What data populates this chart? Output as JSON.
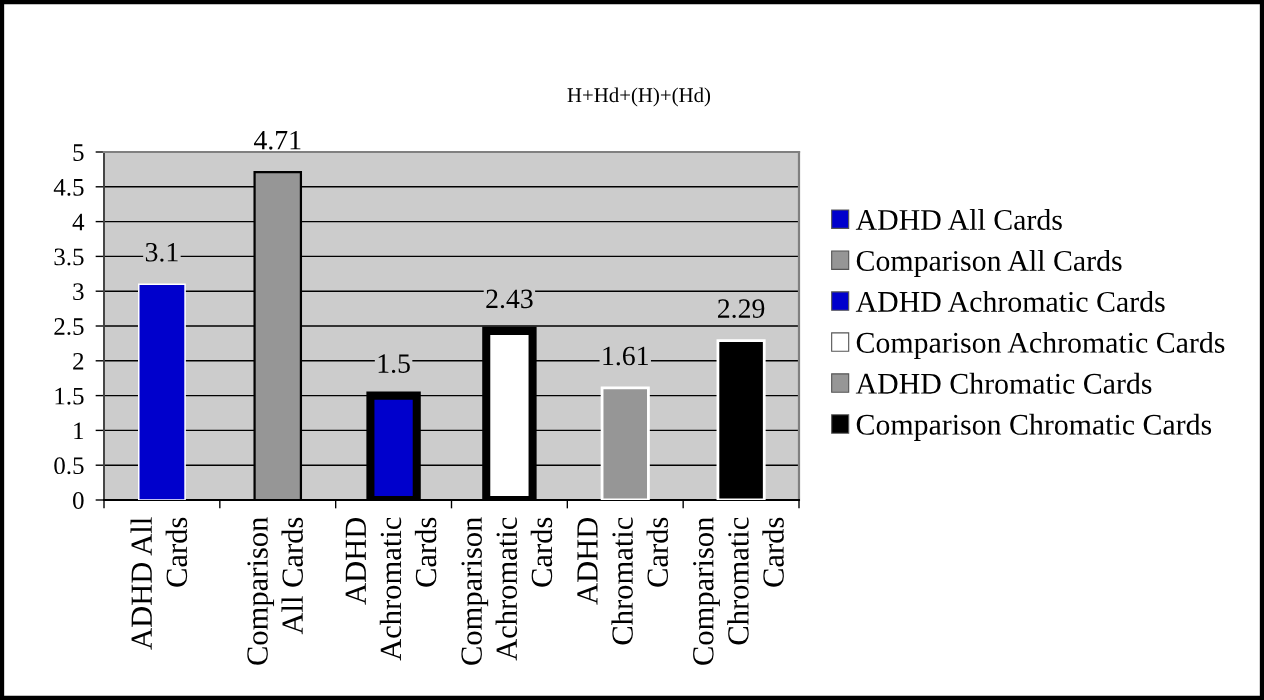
{
  "chart_data": {
    "type": "bar",
    "title": "H+Hd+(H)+(Hd)",
    "categories": [
      "ADHD All\nCards",
      "Comparison\nAll Cards",
      "ADHD\nAchromatic\nCards",
      "Comparison\nAchromatic\nCards",
      "ADHD\nChromatic\nCards",
      "Comparison\nChromatic\nCards"
    ],
    "series": [
      {
        "name": "ADHD All Cards",
        "color": "#0000cc",
        "values": [
          3.1,
          null,
          null,
          null,
          null,
          null
        ]
      },
      {
        "name": "Comparison All Cards",
        "color": "#969696",
        "values": [
          null,
          4.71,
          null,
          null,
          null,
          null
        ]
      },
      {
        "name": "ADHD Achromatic Cards",
        "color": "#0000cc",
        "values": [
          null,
          null,
          1.5,
          null,
          null,
          null
        ]
      },
      {
        "name": "Comparison Achromatic Cards",
        "color": "#ffffff",
        "values": [
          null,
          null,
          null,
          2.43,
          null,
          null
        ]
      },
      {
        "name": "ADHD Chromatic Cards",
        "color": "#969696",
        "values": [
          null,
          null,
          null,
          null,
          1.61,
          null
        ]
      },
      {
        "name": "Comparison Chromatic Cards",
        "color": "#000000",
        "values": [
          null,
          null,
          null,
          null,
          null,
          2.29
        ]
      }
    ],
    "ylim": [
      0,
      5
    ],
    "yticks": [
      0,
      0.5,
      1,
      1.5,
      2,
      2.5,
      3,
      3.5,
      4,
      4.5,
      5
    ],
    "grid": "y",
    "legend": "right",
    "data_labels": true
  }
}
